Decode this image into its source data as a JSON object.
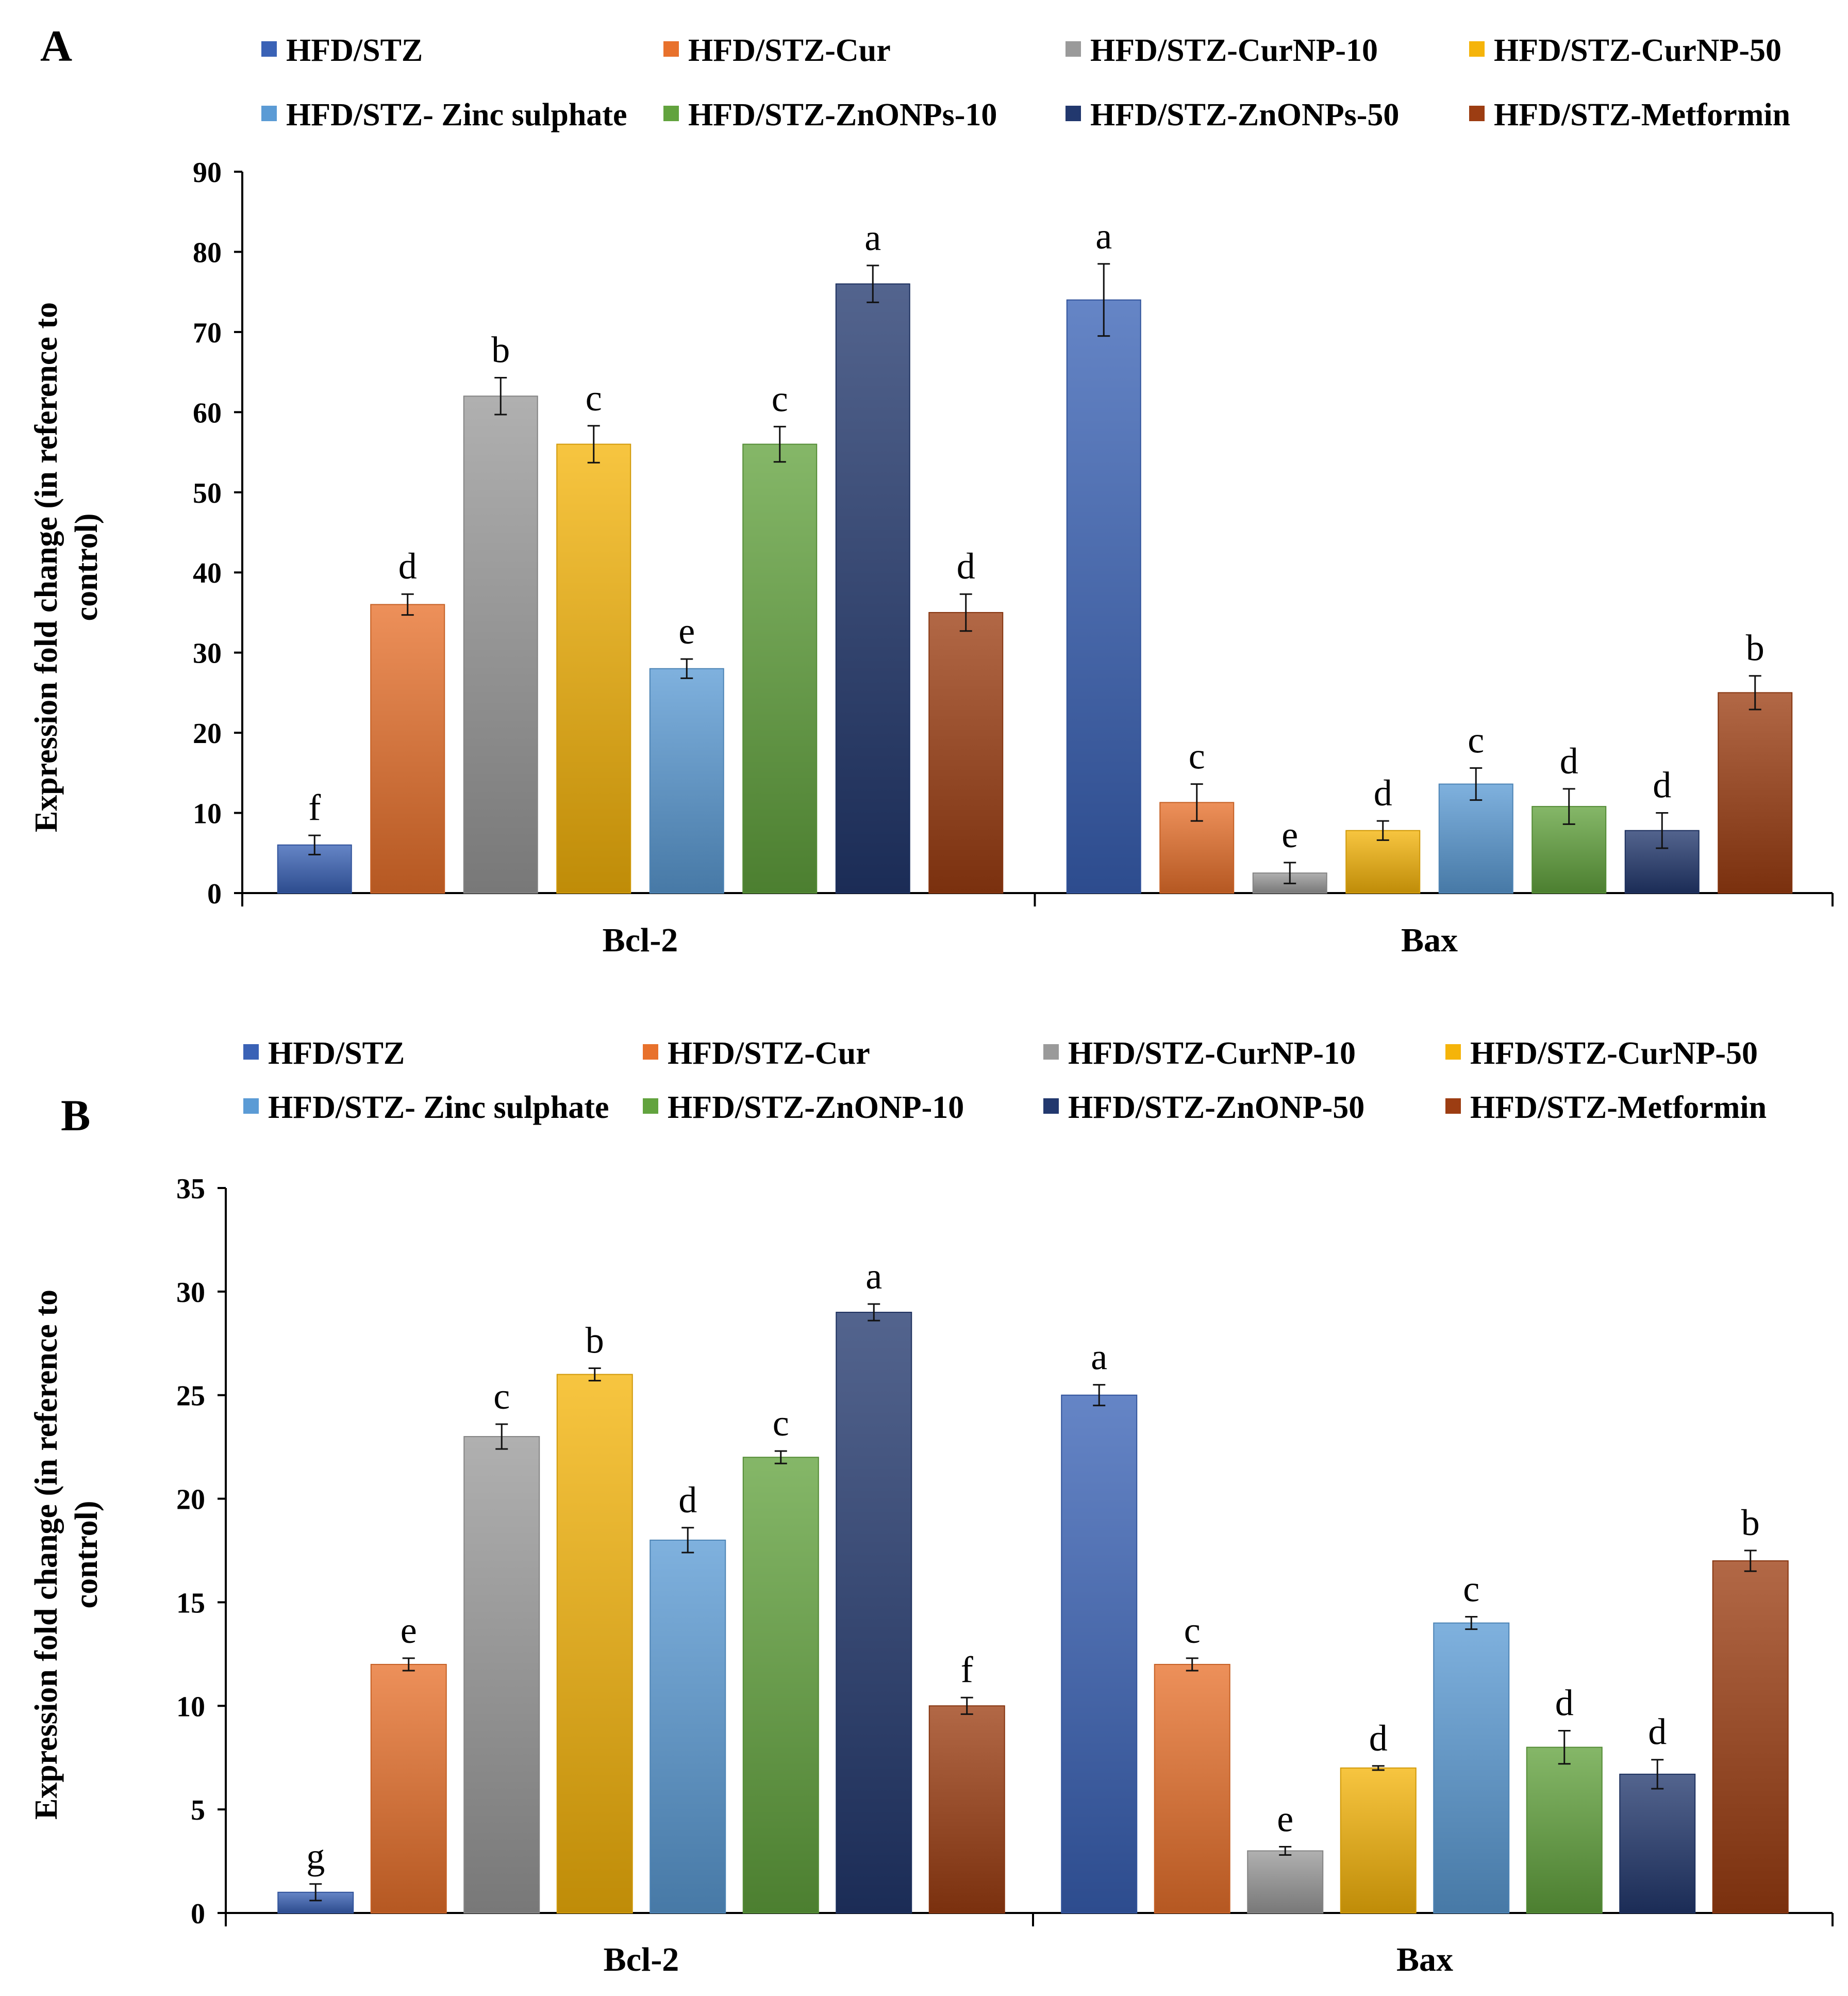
{
  "chart_data": [
    {
      "panel": "A",
      "type": "bar",
      "categories": [
        "Bcl-2",
        "Bax"
      ],
      "ylabel": [
        "Expression  fold change (in reference to",
        "control)"
      ],
      "ylim": [
        0,
        90
      ],
      "yticks": [
        0,
        10,
        20,
        30,
        40,
        50,
        60,
        70,
        80,
        90
      ],
      "legend_position": "top",
      "series": [
        {
          "name": "HFD/STZ",
          "color": "#3a62b6",
          "values": [
            6,
            74
          ],
          "errors": [
            1.2,
            4.5
          ],
          "letters": [
            "f",
            "a"
          ]
        },
        {
          "name": "HFD/STZ-Cur",
          "color": "#e8712c",
          "values": [
            36,
            11.3
          ],
          "errors": [
            1.3,
            2.3
          ],
          "letters": [
            "d",
            "c"
          ]
        },
        {
          "name": "HFD/STZ-CurNP-10",
          "color": "#9a9a9a",
          "values": [
            62,
            2.5
          ],
          "errors": [
            2.3,
            1.3
          ],
          "letters": [
            "b",
            "e"
          ]
        },
        {
          "name": "HFD/STZ-CurNP-50",
          "color": "#f5b40a",
          "values": [
            56,
            7.8
          ],
          "errors": [
            2.3,
            1.2
          ],
          "letters": [
            "c",
            "d"
          ]
        },
        {
          "name": "HFD/STZ- Zinc sulphate",
          "color": "#5b9bd5",
          "values": [
            28,
            13.6
          ],
          "errors": [
            1.2,
            2.0
          ],
          "letters": [
            "e",
            "c"
          ]
        },
        {
          "name": "HFD/STZ-ZnONPs-10",
          "color": "#62a33e",
          "values": [
            56,
            10.8
          ],
          "errors": [
            2.2,
            2.2
          ],
          "letters": [
            "c",
            "d"
          ]
        },
        {
          "name": "HFD/STZ-ZnONPs-50",
          "color": "#22386e",
          "values": [
            76,
            7.8
          ],
          "errors": [
            2.3,
            2.2
          ],
          "letters": [
            "a",
            "d"
          ]
        },
        {
          "name": "HFD/STZ-Metformin",
          "color": "#9c3d12",
          "values": [
            35,
            25
          ],
          "errors": [
            2.3,
            2.1
          ],
          "letters": [
            "d",
            "b"
          ]
        }
      ]
    },
    {
      "panel": "B",
      "type": "bar",
      "categories": [
        "Bcl-2",
        "Bax"
      ],
      "ylabel": [
        "Expression  fold change (in reference to",
        "control)"
      ],
      "ylim": [
        0,
        35
      ],
      "yticks": [
        0,
        5,
        10,
        15,
        20,
        25,
        30,
        35
      ],
      "legend_position": "top",
      "series": [
        {
          "name": "HFD/STZ",
          "color": "#3a62b6",
          "values": [
            1,
            25
          ],
          "errors": [
            0.4,
            0.5
          ],
          "letters": [
            "g",
            "a"
          ]
        },
        {
          "name": "HFD/STZ-Cur",
          "color": "#e8712c",
          "values": [
            12,
            12
          ],
          "errors": [
            0.3,
            0.3
          ],
          "letters": [
            "e",
            "c"
          ]
        },
        {
          "name": "HFD/STZ-CurNP-10",
          "color": "#9a9a9a",
          "values": [
            23,
            3
          ],
          "errors": [
            0.6,
            0.2
          ],
          "letters": [
            "c",
            "e"
          ]
        },
        {
          "name": "HFD/STZ-CurNP-50",
          "color": "#f5b40a",
          "values": [
            26,
            7
          ],
          "errors": [
            0.3,
            0.1
          ],
          "letters": [
            "b",
            "d"
          ]
        },
        {
          "name": "HFD/STZ- Zinc sulphate",
          "color": "#5b9bd5",
          "values": [
            18,
            14
          ],
          "errors": [
            0.6,
            0.3
          ],
          "letters": [
            "d",
            "c"
          ]
        },
        {
          "name": "HFD/STZ-ZnONP-10",
          "color": "#62a33e",
          "values": [
            22,
            8
          ],
          "errors": [
            0.3,
            0.8
          ],
          "letters": [
            "c",
            "d"
          ]
        },
        {
          "name": "HFD/STZ-ZnONP-50",
          "color": "#22386e",
          "values": [
            29,
            6.7
          ],
          "errors": [
            0.4,
            0.7
          ],
          "letters": [
            "a",
            "d"
          ]
        },
        {
          "name": "HFD/STZ-Metformin",
          "color": "#9c3d12",
          "values": [
            10,
            17
          ],
          "errors": [
            0.4,
            0.5
          ],
          "letters": [
            "f",
            "b"
          ]
        }
      ]
    }
  ]
}
